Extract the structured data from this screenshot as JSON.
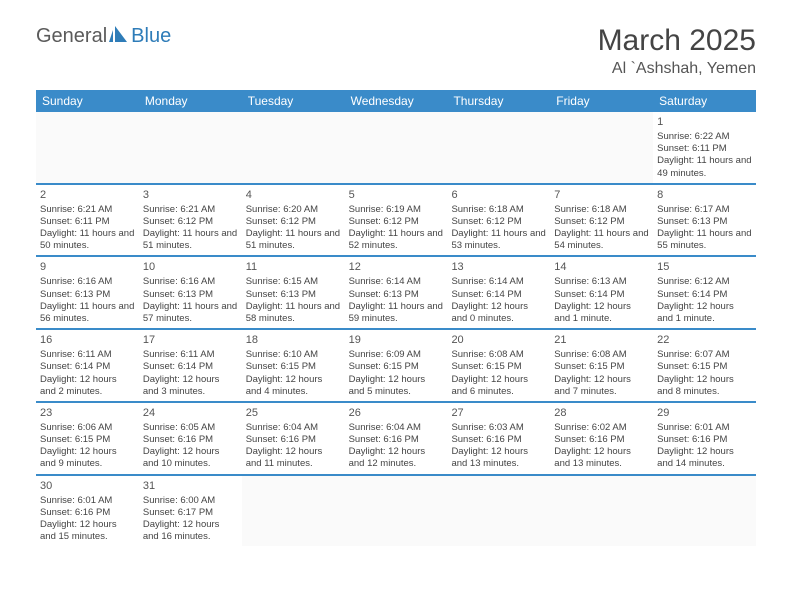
{
  "logo": {
    "text1": "General",
    "text2": "Blue",
    "sail_color": "#2e7cb8",
    "text1_color": "#5a5a5a",
    "text2_color": "#2e7cb8"
  },
  "title": "March 2025",
  "location": "Al `Ashshah, Yemen",
  "header_bg": "#3a8bc9",
  "header_text_color": "#ffffff",
  "day_border_color": "#3a8bc9",
  "day_names": [
    "Sunday",
    "Monday",
    "Tuesday",
    "Wednesday",
    "Thursday",
    "Friday",
    "Saturday"
  ],
  "weeks": [
    [
      {
        "empty": true
      },
      {
        "empty": true
      },
      {
        "empty": true
      },
      {
        "empty": true
      },
      {
        "empty": true
      },
      {
        "empty": true
      },
      {
        "num": "1",
        "sunrise": "Sunrise: 6:22 AM",
        "sunset": "Sunset: 6:11 PM",
        "daylight": "Daylight: 11 hours and 49 minutes."
      }
    ],
    [
      {
        "num": "2",
        "sunrise": "Sunrise: 6:21 AM",
        "sunset": "Sunset: 6:11 PM",
        "daylight": "Daylight: 11 hours and 50 minutes."
      },
      {
        "num": "3",
        "sunrise": "Sunrise: 6:21 AM",
        "sunset": "Sunset: 6:12 PM",
        "daylight": "Daylight: 11 hours and 51 minutes."
      },
      {
        "num": "4",
        "sunrise": "Sunrise: 6:20 AM",
        "sunset": "Sunset: 6:12 PM",
        "daylight": "Daylight: 11 hours and 51 minutes."
      },
      {
        "num": "5",
        "sunrise": "Sunrise: 6:19 AM",
        "sunset": "Sunset: 6:12 PM",
        "daylight": "Daylight: 11 hours and 52 minutes."
      },
      {
        "num": "6",
        "sunrise": "Sunrise: 6:18 AM",
        "sunset": "Sunset: 6:12 PM",
        "daylight": "Daylight: 11 hours and 53 minutes."
      },
      {
        "num": "7",
        "sunrise": "Sunrise: 6:18 AM",
        "sunset": "Sunset: 6:12 PM",
        "daylight": "Daylight: 11 hours and 54 minutes."
      },
      {
        "num": "8",
        "sunrise": "Sunrise: 6:17 AM",
        "sunset": "Sunset: 6:13 PM",
        "daylight": "Daylight: 11 hours and 55 minutes."
      }
    ],
    [
      {
        "num": "9",
        "sunrise": "Sunrise: 6:16 AM",
        "sunset": "Sunset: 6:13 PM",
        "daylight": "Daylight: 11 hours and 56 minutes."
      },
      {
        "num": "10",
        "sunrise": "Sunrise: 6:16 AM",
        "sunset": "Sunset: 6:13 PM",
        "daylight": "Daylight: 11 hours and 57 minutes."
      },
      {
        "num": "11",
        "sunrise": "Sunrise: 6:15 AM",
        "sunset": "Sunset: 6:13 PM",
        "daylight": "Daylight: 11 hours and 58 minutes."
      },
      {
        "num": "12",
        "sunrise": "Sunrise: 6:14 AM",
        "sunset": "Sunset: 6:13 PM",
        "daylight": "Daylight: 11 hours and 59 minutes."
      },
      {
        "num": "13",
        "sunrise": "Sunrise: 6:14 AM",
        "sunset": "Sunset: 6:14 PM",
        "daylight": "Daylight: 12 hours and 0 minutes."
      },
      {
        "num": "14",
        "sunrise": "Sunrise: 6:13 AM",
        "sunset": "Sunset: 6:14 PM",
        "daylight": "Daylight: 12 hours and 1 minute."
      },
      {
        "num": "15",
        "sunrise": "Sunrise: 6:12 AM",
        "sunset": "Sunset: 6:14 PM",
        "daylight": "Daylight: 12 hours and 1 minute."
      }
    ],
    [
      {
        "num": "16",
        "sunrise": "Sunrise: 6:11 AM",
        "sunset": "Sunset: 6:14 PM",
        "daylight": "Daylight: 12 hours and 2 minutes."
      },
      {
        "num": "17",
        "sunrise": "Sunrise: 6:11 AM",
        "sunset": "Sunset: 6:14 PM",
        "daylight": "Daylight: 12 hours and 3 minutes."
      },
      {
        "num": "18",
        "sunrise": "Sunrise: 6:10 AM",
        "sunset": "Sunset: 6:15 PM",
        "daylight": "Daylight: 12 hours and 4 minutes."
      },
      {
        "num": "19",
        "sunrise": "Sunrise: 6:09 AM",
        "sunset": "Sunset: 6:15 PM",
        "daylight": "Daylight: 12 hours and 5 minutes."
      },
      {
        "num": "20",
        "sunrise": "Sunrise: 6:08 AM",
        "sunset": "Sunset: 6:15 PM",
        "daylight": "Daylight: 12 hours and 6 minutes."
      },
      {
        "num": "21",
        "sunrise": "Sunrise: 6:08 AM",
        "sunset": "Sunset: 6:15 PM",
        "daylight": "Daylight: 12 hours and 7 minutes."
      },
      {
        "num": "22",
        "sunrise": "Sunrise: 6:07 AM",
        "sunset": "Sunset: 6:15 PM",
        "daylight": "Daylight: 12 hours and 8 minutes."
      }
    ],
    [
      {
        "num": "23",
        "sunrise": "Sunrise: 6:06 AM",
        "sunset": "Sunset: 6:15 PM",
        "daylight": "Daylight: 12 hours and 9 minutes."
      },
      {
        "num": "24",
        "sunrise": "Sunrise: 6:05 AM",
        "sunset": "Sunset: 6:16 PM",
        "daylight": "Daylight: 12 hours and 10 minutes."
      },
      {
        "num": "25",
        "sunrise": "Sunrise: 6:04 AM",
        "sunset": "Sunset: 6:16 PM",
        "daylight": "Daylight: 12 hours and 11 minutes."
      },
      {
        "num": "26",
        "sunrise": "Sunrise: 6:04 AM",
        "sunset": "Sunset: 6:16 PM",
        "daylight": "Daylight: 12 hours and 12 minutes."
      },
      {
        "num": "27",
        "sunrise": "Sunrise: 6:03 AM",
        "sunset": "Sunset: 6:16 PM",
        "daylight": "Daylight: 12 hours and 13 minutes."
      },
      {
        "num": "28",
        "sunrise": "Sunrise: 6:02 AM",
        "sunset": "Sunset: 6:16 PM",
        "daylight": "Daylight: 12 hours and 13 minutes."
      },
      {
        "num": "29",
        "sunrise": "Sunrise: 6:01 AM",
        "sunset": "Sunset: 6:16 PM",
        "daylight": "Daylight: 12 hours and 14 minutes."
      }
    ],
    [
      {
        "num": "30",
        "sunrise": "Sunrise: 6:01 AM",
        "sunset": "Sunset: 6:16 PM",
        "daylight": "Daylight: 12 hours and 15 minutes."
      },
      {
        "num": "31",
        "sunrise": "Sunrise: 6:00 AM",
        "sunset": "Sunset: 6:17 PM",
        "daylight": "Daylight: 12 hours and 16 minutes."
      },
      {
        "empty": true
      },
      {
        "empty": true
      },
      {
        "empty": true
      },
      {
        "empty": true
      },
      {
        "empty": true
      }
    ]
  ]
}
